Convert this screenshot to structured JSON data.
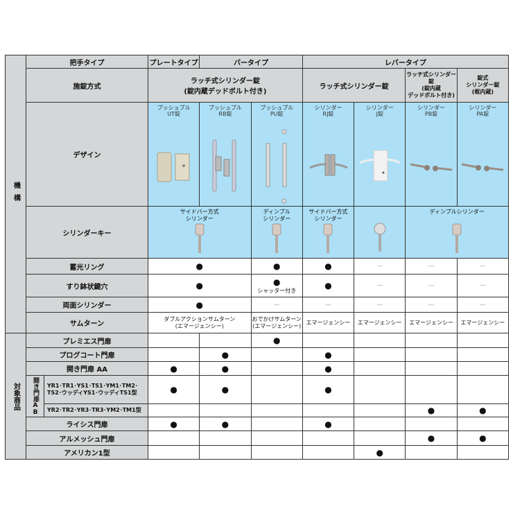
{
  "mechanism_category": "機構",
  "header": {
    "label": "把手タイプ",
    "plate": "プレートタイプ",
    "bar": "バータイプ",
    "lever": "レバータイプ"
  },
  "lock_method": {
    "label": "施錠方式",
    "cells": [
      {
        "text": "ラッチ式シリンダー錠\n(錠内蔵デッドボルト付き)",
        "span": 3
      },
      {
        "text": "ラッチ式シリンダー錠",
        "span": 2
      },
      {
        "text": "ラッチ式シリンダー錠\n(錠内蔵\nデッドボルト付き)",
        "span": 1
      },
      {
        "text": "錠式\nシリンダー錠\n(框内蔵)",
        "span": 1
      }
    ]
  },
  "design": {
    "label": "デザイン",
    "items": [
      {
        "name": "プッシュプル\nUT錠",
        "icon": "plate-handle"
      },
      {
        "name": "プッシュプル\nRB錠",
        "icon": "bar-handle"
      },
      {
        "name": "プッシュプル\nPU錠",
        "icon": "bar-handle-long"
      },
      {
        "name": "シリンダー\nRJ錠",
        "icon": "lever-plate"
      },
      {
        "name": "シリンダー\nJ錠",
        "icon": "lever-white-plate"
      },
      {
        "name": "シリンダー\nPB錠",
        "icon": "lever-handle"
      },
      {
        "name": "シリンダー\nPA錠",
        "icon": "lever-handle"
      }
    ]
  },
  "key": {
    "label": "シリンダーキー",
    "cells": [
      {
        "text": "サイドバー方式\nシリンダー",
        "span": 2,
        "icon": "key-icon"
      },
      {
        "text": "ディンプル\nシリンダー",
        "span": 1,
        "icon": "key-icon"
      },
      {
        "text": "サイドバー方式\nシリンダー",
        "span": 1,
        "icon": "key-icon"
      },
      {
        "text": "",
        "span": 1,
        "icon": "key-ring-icon"
      },
      {
        "text": "ディンプルシリンダー",
        "span": 2,
        "icon": "key-icon"
      }
    ]
  },
  "features": [
    {
      "label": "蓄光リング",
      "cells": [
        {
          "text": "●",
          "span": 2
        },
        {
          "text": "●"
        },
        {
          "text": "●"
        },
        {
          "text": "—"
        },
        {
          "text": "—"
        },
        {
          "text": "—"
        }
      ]
    },
    {
      "label": "すり鉢状鍵穴",
      "cells": [
        {
          "text": "●",
          "span": 2
        },
        {
          "text": "●",
          "note": "シャッター付き"
        },
        {
          "text": "●"
        },
        {
          "text": "—"
        },
        {
          "text": "—"
        },
        {
          "text": "—"
        }
      ]
    },
    {
      "label": "両面シリンダー",
      "cells": [
        {
          "text": "●",
          "span": 2
        },
        {
          "text": "—"
        },
        {
          "text": "—"
        },
        {
          "text": "—"
        },
        {
          "text": "—"
        },
        {
          "text": "—"
        }
      ]
    },
    {
      "label": "サムターン",
      "cells": [
        {
          "text": "ダブルアクションサムターン\n(エマージェンシー)",
          "span": 2
        },
        {
          "text": "おでかけサムターン\n(エマージェンシー)"
        },
        {
          "text": "エマージェンシー"
        },
        {
          "text": "エマージェンシー"
        },
        {
          "text": "エマージェンシー"
        },
        {
          "text": "エマージェンシー"
        }
      ]
    }
  ],
  "products": {
    "category": "対象商品",
    "group_label": "開き門扉AB",
    "rows": [
      {
        "label": "プレミエス門扉",
        "marks": [
          "",
          "",
          "●",
          "",
          "",
          "",
          ""
        ]
      },
      {
        "label": "プログコート門扉",
        "marks": [
          "",
          "●",
          "",
          "●",
          "",
          "",
          ""
        ]
      },
      {
        "label": "開き門扉 AA",
        "marks": [
          "●",
          "●",
          "",
          "●",
          "",
          "",
          ""
        ]
      },
      {
        "label": "YR1･TR1･YS1･TS1･YM1･TM2･\nTS2･ウッディYS1･ウッディTS1型",
        "marks": [
          "●",
          "●",
          "",
          "●",
          "",
          "",
          ""
        ],
        "group": true
      },
      {
        "label": "YR2･TR2･YR3･TR3･YM2･TM1型",
        "marks": [
          "",
          "",
          "",
          "",
          "",
          "●",
          "●"
        ],
        "group": true
      },
      {
        "label": "ライシス門扉",
        "marks": [
          "●",
          "●",
          "",
          "●",
          "",
          "",
          ""
        ]
      },
      {
        "label": "アルメッシュ門扉",
        "marks": [
          "",
          "",
          "",
          "",
          "",
          "●",
          "●"
        ]
      },
      {
        "label": "アメリカン1型",
        "marks": [
          "",
          "",
          "",
          "",
          "●",
          "",
          ""
        ]
      }
    ]
  },
  "colors": {
    "header_gray": "#d4d6d7",
    "design_blue": "#ade0f6"
  }
}
